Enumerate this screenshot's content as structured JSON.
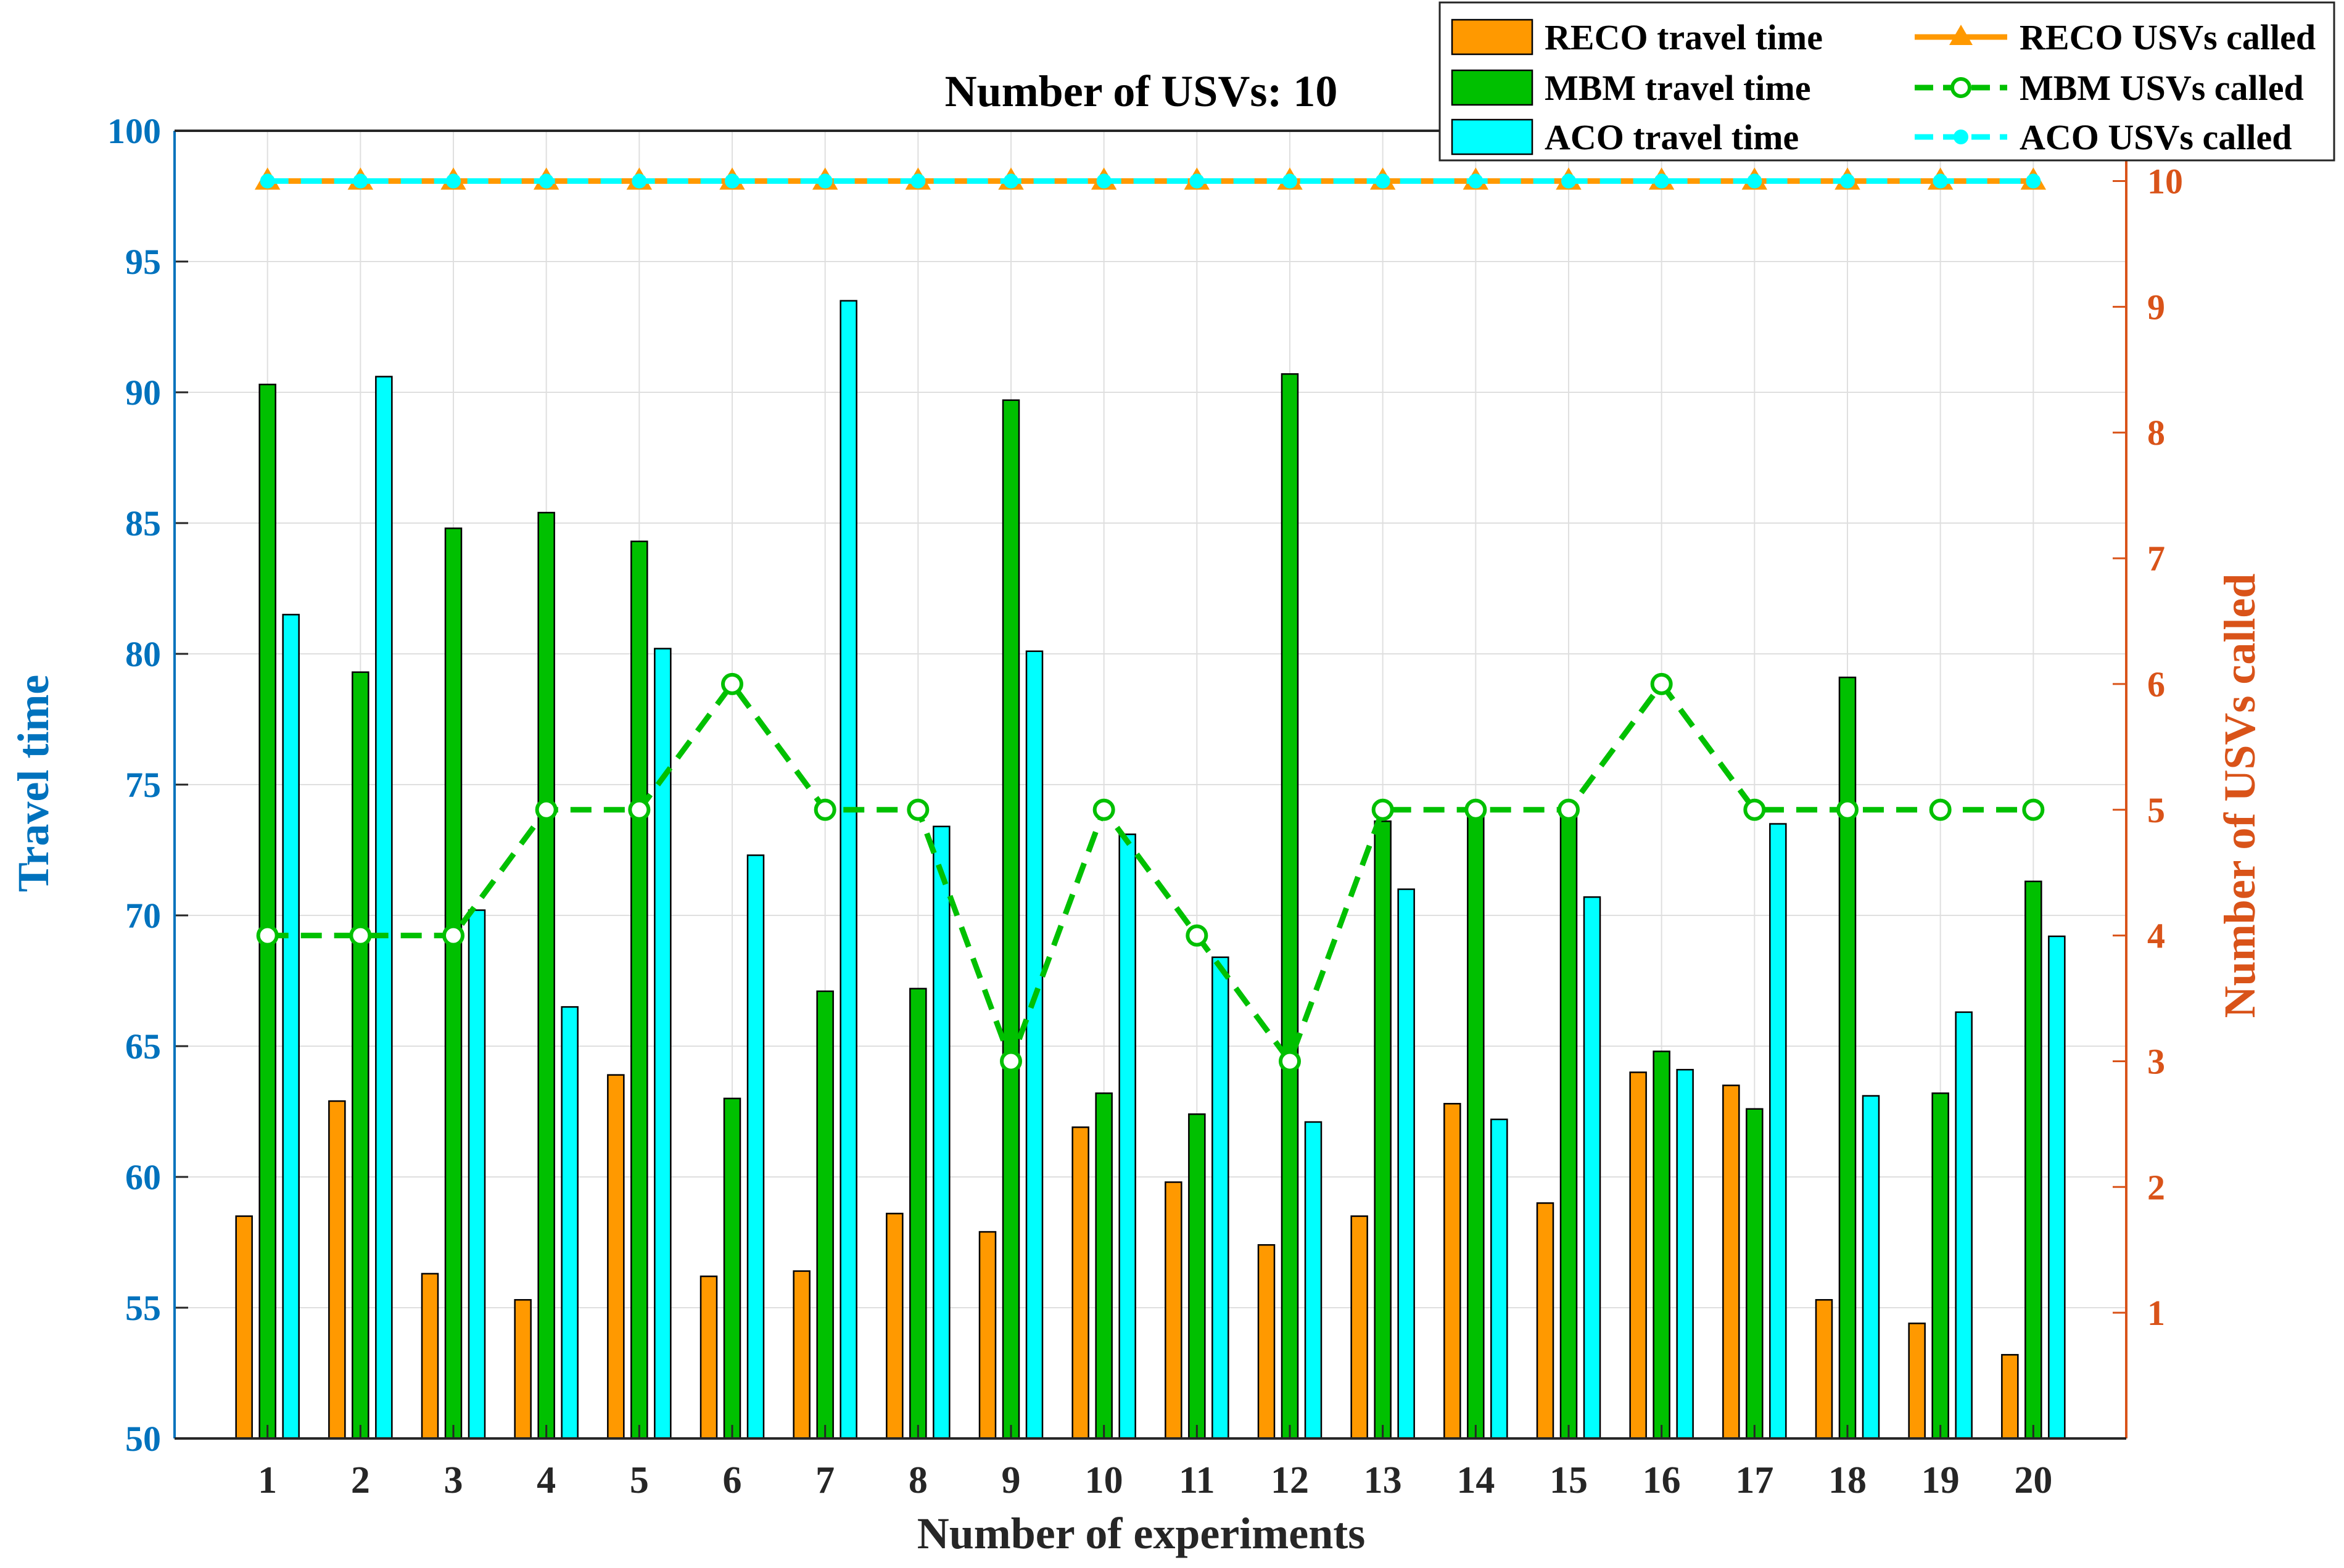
{
  "chart_data": {
    "type": "bar",
    "title": "Number of USVs: 10",
    "xlabel": "Number of experiments",
    "ylabel": "Travel time",
    "ylabel_right": "Number of USVs called",
    "categories": [
      "1",
      "2",
      "3",
      "4",
      "5",
      "6",
      "7",
      "8",
      "9",
      "10",
      "11",
      "12",
      "13",
      "14",
      "15",
      "16",
      "17",
      "18",
      "19",
      "20"
    ],
    "ylim": [
      50,
      100
    ],
    "yticks": [
      "50",
      "55",
      "60",
      "65",
      "70",
      "75",
      "80",
      "85",
      "90",
      "95",
      "100"
    ],
    "ylim_right": [
      0,
      10.4
    ],
    "yticks_right": [
      "1",
      "2",
      "3",
      "4",
      "5",
      "6",
      "7",
      "8",
      "9",
      "10"
    ],
    "grid": true,
    "legend_position": "top-right",
    "series": [
      {
        "name": "RECO travel time",
        "kind": "bar",
        "color": "#FF9900",
        "values": [
          58.5,
          62.9,
          56.3,
          55.3,
          63.9,
          56.2,
          56.4,
          58.6,
          57.9,
          61.9,
          59.8,
          57.4,
          58.5,
          62.8,
          59.0,
          64.0,
          63.5,
          55.3,
          54.4,
          53.2
        ]
      },
      {
        "name": "MBM travel time",
        "kind": "bar",
        "color": "#00C000",
        "values": [
          90.3,
          79.3,
          84.8,
          85.4,
          84.3,
          63.0,
          67.1,
          67.2,
          89.7,
          63.2,
          62.4,
          90.7,
          73.6,
          74.2,
          74.1,
          64.8,
          62.6,
          79.1,
          63.2,
          71.3
        ]
      },
      {
        "name": "ACO travel time",
        "kind": "bar",
        "color": "#00FFFF",
        "values": [
          81.5,
          90.6,
          70.2,
          66.5,
          80.2,
          72.3,
          93.5,
          73.4,
          80.1,
          73.1,
          68.4,
          62.1,
          71.0,
          62.2,
          70.7,
          64.1,
          73.5,
          63.1,
          66.3,
          69.2
        ]
      },
      {
        "name": "RECO USVs called",
        "kind": "line",
        "axis": "right",
        "color": "#FF9900",
        "marker": "triangle",
        "values": [
          10,
          10,
          10,
          10,
          10,
          10,
          10,
          10,
          10,
          10,
          10,
          10,
          10,
          10,
          10,
          10,
          10,
          10,
          10,
          10
        ]
      },
      {
        "name": "MBM USVs called",
        "kind": "line",
        "axis": "right",
        "color": "#00C000",
        "marker": "circle",
        "values": [
          4,
          4,
          4,
          5,
          5,
          6,
          5,
          5,
          3,
          5,
          4,
          3,
          5,
          5,
          5,
          6,
          5,
          5,
          5,
          5
        ]
      },
      {
        "name": "ACO USVs called",
        "kind": "line",
        "axis": "right",
        "color": "#00FFFF",
        "marker": "dot",
        "values": [
          10,
          10,
          10,
          10,
          10,
          10,
          10,
          10,
          10,
          10,
          10,
          10,
          10,
          10,
          10,
          10,
          10,
          10,
          10,
          10
        ]
      }
    ]
  }
}
